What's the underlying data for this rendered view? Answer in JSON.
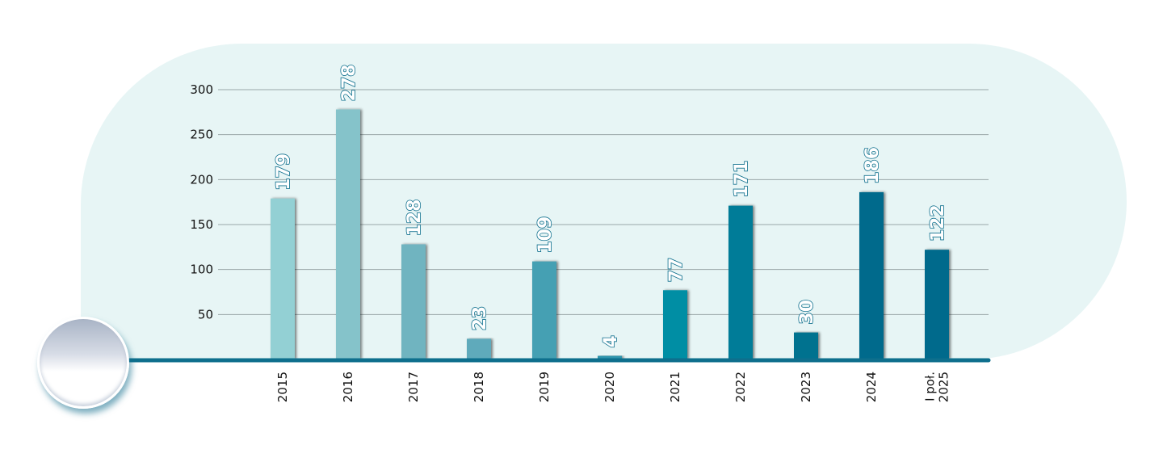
{
  "chart_data": {
    "type": "bar",
    "title": "",
    "xlabel": "",
    "ylabel": "",
    "ylim": [
      0,
      300
    ],
    "yticks": [
      50,
      100,
      150,
      200,
      250,
      300
    ],
    "grid": true,
    "categories": [
      "2015",
      "2016",
      "2017",
      "2018",
      "2019",
      "2020",
      "2021",
      "2022",
      "2023",
      "2024",
      "I poł. 2025"
    ],
    "category_lines": [
      [
        "2015"
      ],
      [
        "2016"
      ],
      [
        "2017"
      ],
      [
        "2018"
      ],
      [
        "2019"
      ],
      [
        "2020"
      ],
      [
        "2021"
      ],
      [
        "2022"
      ],
      [
        "2023"
      ],
      [
        "2024"
      ],
      [
        "I poł.",
        "2025"
      ]
    ],
    "values": [
      179,
      278,
      128,
      23,
      109,
      4,
      77,
      171,
      30,
      186,
      122
    ],
    "colors": [
      "#93d0d4",
      "#85c3ca",
      "#70b4c0",
      "#5eaabb",
      "#45a0b3",
      "#2e95ad",
      "#008ea4",
      "#007b98",
      "#00728f",
      "#006a8c",
      "#006a8c"
    ],
    "axis_color": "#0e6f8d",
    "background_color": "#e7f5f5"
  }
}
